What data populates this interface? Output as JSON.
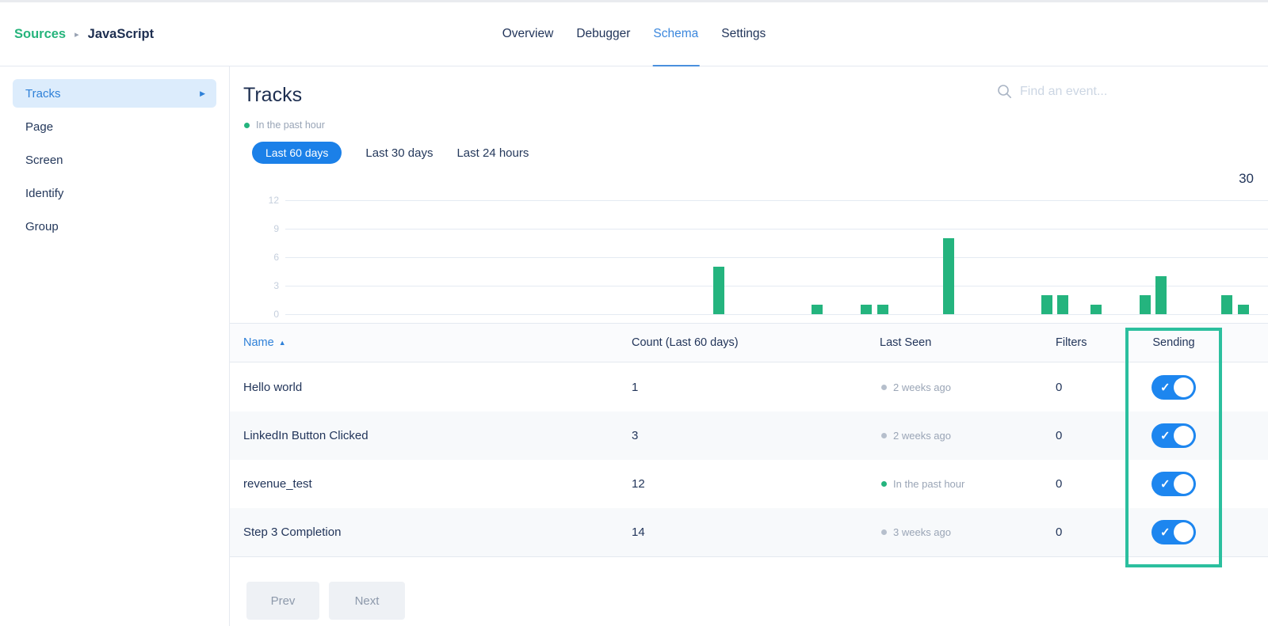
{
  "header": {
    "breadcrumb": {
      "root": "Sources",
      "separator": "▸",
      "current": "JavaScript"
    },
    "tabs": [
      {
        "label": "Overview",
        "active": false
      },
      {
        "label": "Debugger",
        "active": false
      },
      {
        "label": "Schema",
        "active": true
      },
      {
        "label": "Settings",
        "active": false
      }
    ]
  },
  "sidebar": {
    "items": [
      {
        "label": "Tracks",
        "active": true
      },
      {
        "label": "Page",
        "active": false
      },
      {
        "label": "Screen",
        "active": false
      },
      {
        "label": "Identify",
        "active": false
      },
      {
        "label": "Group",
        "active": false
      }
    ]
  },
  "main": {
    "title": "Tracks",
    "freshness_label": "In the past hour",
    "range_buttons": [
      {
        "label": "Last 60 days",
        "active": true
      },
      {
        "label": "Last 30 days",
        "active": false
      },
      {
        "label": "Last 24 hours",
        "active": false
      }
    ],
    "search_placeholder": "Find an event...",
    "total_count": "30"
  },
  "chart_data": {
    "type": "bar",
    "title": "",
    "xlabel": "",
    "ylabel": "",
    "x_slots": 60,
    "x_unit": "day (Last 60 days)",
    "yticks": [
      0,
      3,
      6,
      9,
      12
    ],
    "ylim": [
      0,
      13
    ],
    "grid": true,
    "legend": false,
    "bar_color": "#24b47e",
    "total_events": 30,
    "points": [
      {
        "day": 26,
        "value": 5
      },
      {
        "day": 32,
        "value": 1
      },
      {
        "day": 35,
        "value": 1
      },
      {
        "day": 36,
        "value": 1
      },
      {
        "day": 40,
        "value": 8
      },
      {
        "day": 46,
        "value": 2
      },
      {
        "day": 47,
        "value": 2
      },
      {
        "day": 49,
        "value": 1
      },
      {
        "day": 52,
        "value": 2
      },
      {
        "day": 53,
        "value": 4
      },
      {
        "day": 57,
        "value": 2
      },
      {
        "day": 58,
        "value": 1
      }
    ]
  },
  "table": {
    "columns": [
      "Name",
      "Count (Last 60 days)",
      "Last Seen",
      "Filters",
      "Sending"
    ],
    "sort_indicator": "▲",
    "rows": [
      {
        "name": "Hello world",
        "count": "1",
        "last_seen": "2 weeks ago",
        "recent": false,
        "filters": "0",
        "sending": true
      },
      {
        "name": "LinkedIn Button Clicked",
        "count": "3",
        "last_seen": "2 weeks ago",
        "recent": false,
        "filters": "0",
        "sending": true
      },
      {
        "name": "revenue_test",
        "count": "12",
        "last_seen": "In the past hour",
        "recent": true,
        "filters": "0",
        "sending": true
      },
      {
        "name": "Step 3 Completion",
        "count": "14",
        "last_seen": "3 weeks ago",
        "recent": false,
        "filters": "0",
        "sending": true
      }
    ]
  },
  "icons": {
    "check": "✓",
    "sidebar_arrow": "▶"
  },
  "pagination": {
    "prev_label": "Prev",
    "next_label": "Next"
  },
  "colors": {
    "brand_green": "#24b47e",
    "accent_blue": "#1b80e8",
    "toggle_blue": "#1d86ef",
    "link_blue": "#2e80d8",
    "highlight_teal": "#2bbf9e",
    "dark_text": "#22355a",
    "muted_text": "#98a4b6",
    "gridline": "#e4eaf2"
  }
}
